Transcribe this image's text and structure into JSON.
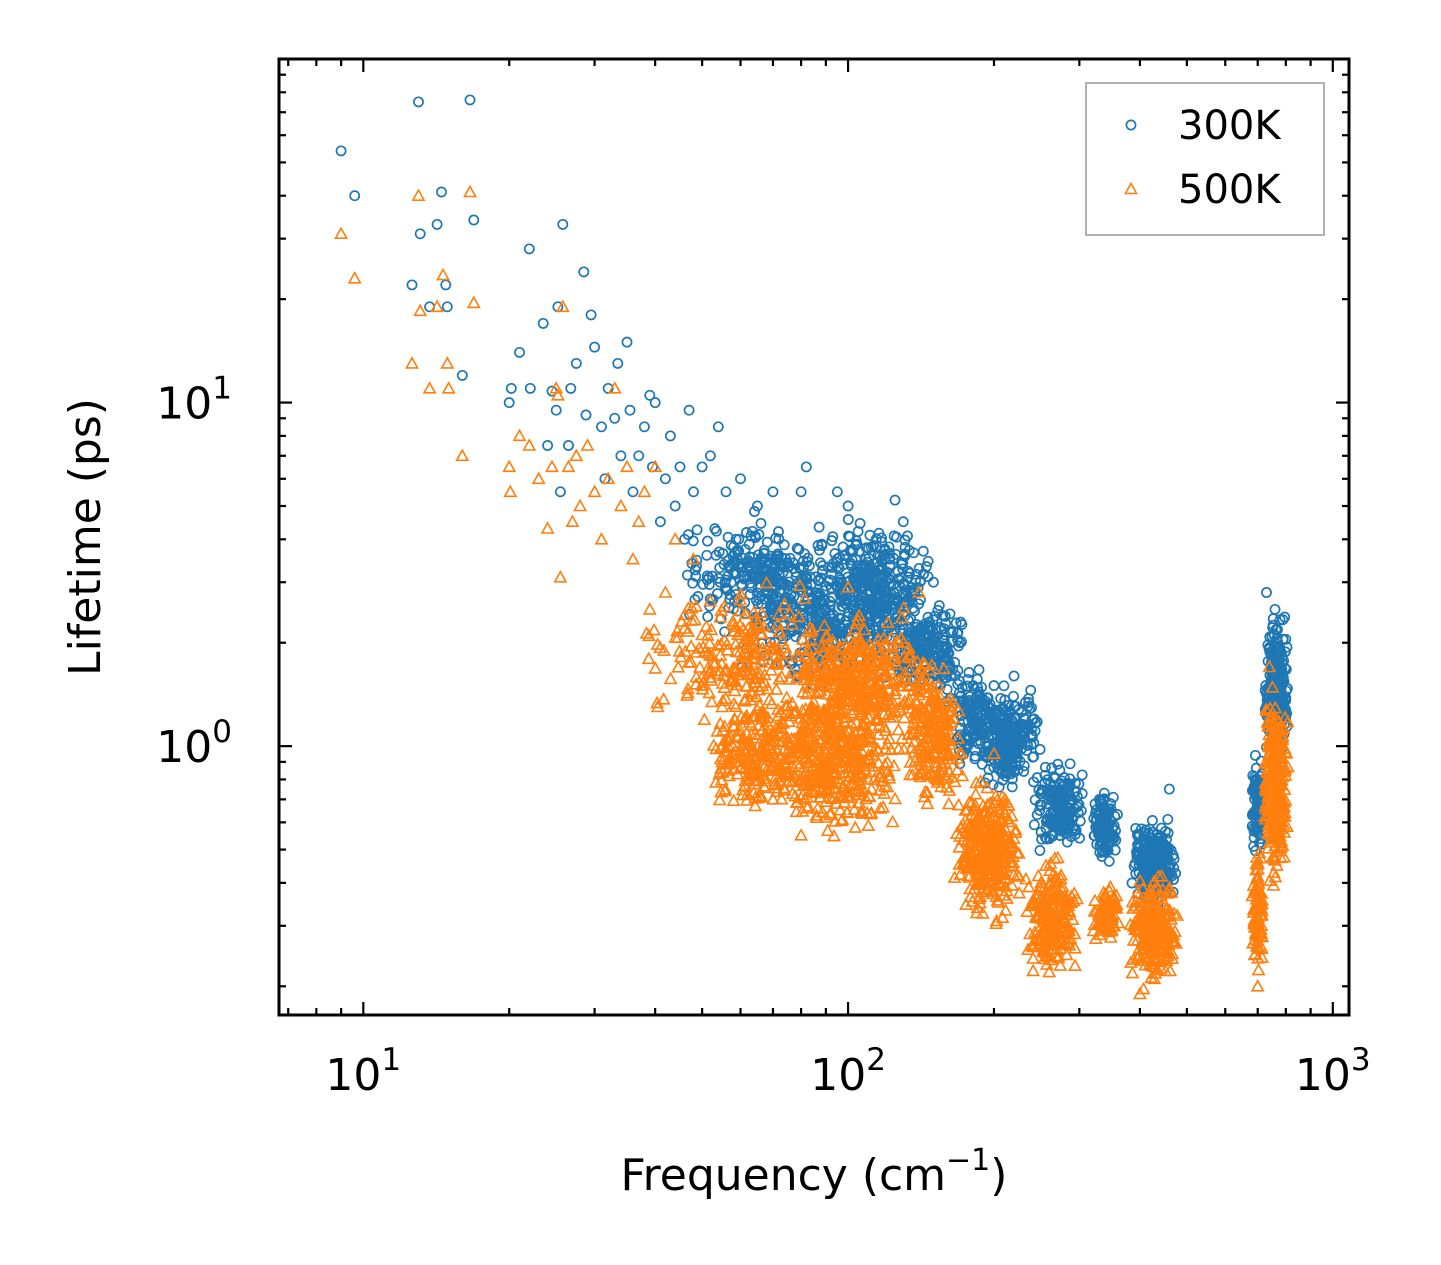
{
  "chart_data": {
    "type": "scatter",
    "xscale": "log",
    "yscale": "log",
    "xlim": [
      6.7,
      1080
    ],
    "ylim": [
      0.165,
      100
    ],
    "xlabel": "Frequency (cm",
    "xlabel_sup": "−1",
    "xlabel_end": ")",
    "ylabel": "Lifetime (ps)",
    "x_ticks": [
      {
        "value": 10,
        "base": "10",
        "exp": "1"
      },
      {
        "value": 100,
        "base": "10",
        "exp": "2"
      },
      {
        "value": 1000,
        "base": "10",
        "exp": "3"
      }
    ],
    "y_ticks": [
      {
        "value": 1,
        "base": "10",
        "exp": "0"
      },
      {
        "value": 10,
        "base": "10",
        "exp": "1"
      }
    ],
    "legend_position": "top-right",
    "series": [
      {
        "name": "300K",
        "marker": "circle",
        "color": "#1f77b4",
        "points": [
          [
            9.0,
            54
          ],
          [
            9.6,
            40
          ],
          [
            12.6,
            22
          ],
          [
            13.0,
            75
          ],
          [
            13.1,
            31
          ],
          [
            13.7,
            19
          ],
          [
            14.2,
            33
          ],
          [
            14.5,
            41
          ],
          [
            14.8,
            22
          ],
          [
            14.9,
            19
          ],
          [
            16.0,
            12
          ],
          [
            16.6,
            76
          ],
          [
            16.9,
            34
          ],
          [
            20.0,
            10
          ],
          [
            20.2,
            11
          ],
          [
            21.0,
            14
          ],
          [
            22.0,
            28
          ],
          [
            22.1,
            11
          ],
          [
            23.5,
            17
          ],
          [
            24.0,
            7.5
          ],
          [
            24.5,
            10.8
          ],
          [
            25.0,
            9.5
          ],
          [
            25.2,
            19
          ],
          [
            25.5,
            5.5
          ],
          [
            25.8,
            33
          ],
          [
            26.5,
            7.5
          ],
          [
            26.8,
            11
          ],
          [
            27.5,
            13
          ],
          [
            28.5,
            24
          ],
          [
            28.8,
            9.2
          ],
          [
            29.5,
            18
          ],
          [
            30.0,
            14.5
          ],
          [
            31.0,
            8.5
          ],
          [
            31.5,
            6
          ],
          [
            32.0,
            11
          ],
          [
            33.0,
            9
          ],
          [
            33.5,
            13
          ],
          [
            34.0,
            7
          ],
          [
            35.0,
            15
          ],
          [
            35.5,
            9.5
          ],
          [
            36.0,
            5.5
          ],
          [
            37.0,
            7
          ],
          [
            38.0,
            8.5
          ],
          [
            39.0,
            10.5
          ],
          [
            39.5,
            6.5
          ],
          [
            40.0,
            10
          ],
          [
            41.0,
            4.5
          ],
          [
            42.0,
            6
          ],
          [
            43.0,
            8
          ],
          [
            44.0,
            5
          ],
          [
            45.0,
            6.5
          ],
          [
            46.0,
            4
          ],
          [
            47.0,
            9.5
          ],
          [
            48.0,
            5.5
          ],
          [
            50.0,
            6.5
          ],
          [
            52.0,
            7
          ],
          [
            54.0,
            8.5
          ],
          [
            56.0,
            5.5
          ],
          [
            60.0,
            6
          ],
          [
            65.0,
            5
          ],
          [
            70.0,
            5.5
          ],
          [
            80.0,
            5.5
          ],
          [
            82.0,
            6.5
          ],
          [
            95.0,
            5.5
          ],
          [
            100.0,
            5
          ],
          [
            125.0,
            5.2
          ],
          [
            130.0,
            4.5
          ],
          [
            150.0,
            3
          ],
          [
            170.0,
            2
          ],
          [
            200.0,
            1.5
          ],
          [
            220.0,
            1.6
          ],
          [
            330.0,
            0.7
          ],
          [
            460.0,
            0.75
          ],
          [
            730.0,
            2.8
          ],
          [
            760.0,
            2.5
          ]
        ],
        "clusters": [
          {
            "x": [
              45,
              95
            ],
            "y": [
              2.0,
              5.0
            ],
            "n": 260
          },
          {
            "x": [
              60,
              130
            ],
            "y": [
              1.3,
              3.8
            ],
            "n": 280
          },
          {
            "x": [
              85,
              150
            ],
            "y": [
              1.8,
              4.8
            ],
            "n": 320
          },
          {
            "x": [
              120,
              175
            ],
            "y": [
              1.2,
              3.2
            ],
            "n": 200
          },
          {
            "x": [
              165,
              200
            ],
            "y": [
              0.8,
              1.8
            ],
            "n": 120
          },
          {
            "x": [
              185,
              250
            ],
            "y": [
              0.7,
              1.6
            ],
            "n": 280
          },
          {
            "x": [
              240,
              310
            ],
            "y": [
              0.45,
              0.95
            ],
            "n": 180
          },
          {
            "x": [
              320,
              360
            ],
            "y": [
              0.45,
              0.75
            ],
            "n": 120
          },
          {
            "x": [
              380,
              480
            ],
            "y": [
              0.33,
              0.65
            ],
            "n": 260
          },
          {
            "x": [
              680,
              720
            ],
            "y": [
              0.45,
              1.0
            ],
            "n": 80
          },
          {
            "x": [
              720,
              810
            ],
            "y": [
              0.8,
              2.7
            ],
            "n": 300
          }
        ]
      },
      {
        "name": "500K",
        "marker": "triangle",
        "color": "#ff7f0e",
        "points": [
          [
            9.0,
            31
          ],
          [
            9.6,
            23
          ],
          [
            12.6,
            13
          ],
          [
            13.0,
            40
          ],
          [
            13.1,
            18.5
          ],
          [
            13.7,
            11
          ],
          [
            14.2,
            19
          ],
          [
            14.6,
            23.5
          ],
          [
            14.9,
            13
          ],
          [
            15.0,
            11
          ],
          [
            16.0,
            7
          ],
          [
            16.6,
            41
          ],
          [
            16.9,
            19.5
          ],
          [
            20.0,
            6.5
          ],
          [
            20.1,
            5.5
          ],
          [
            21.0,
            8
          ],
          [
            22.0,
            7.5
          ],
          [
            23.0,
            6
          ],
          [
            24.0,
            4.3
          ],
          [
            24.5,
            6.5
          ],
          [
            25.0,
            11
          ],
          [
            25.2,
            10.5
          ],
          [
            25.5,
            3.1
          ],
          [
            25.8,
            19
          ],
          [
            26.5,
            6.5
          ],
          [
            27.0,
            4.5
          ],
          [
            27.5,
            7
          ],
          [
            28.0,
            5
          ],
          [
            29.0,
            7.5
          ],
          [
            30.0,
            5.5
          ],
          [
            31.0,
            4
          ],
          [
            32.0,
            6
          ],
          [
            33.0,
            11
          ],
          [
            34.0,
            5
          ],
          [
            35.0,
            6.5
          ],
          [
            36.0,
            3.5
          ],
          [
            37.0,
            4.5
          ],
          [
            38.0,
            5.5
          ],
          [
            39.0,
            2.5
          ],
          [
            40.0,
            6.5
          ],
          [
            42.0,
            2.8
          ],
          [
            44.0,
            4
          ],
          [
            46.0,
            2.2
          ],
          [
            48.0,
            3.5
          ],
          [
            50.0,
            1.5
          ],
          [
            55.0,
            1.3
          ],
          [
            60.0,
            0.9
          ],
          [
            70.0,
            0.7
          ],
          [
            80.0,
            0.55
          ],
          [
            90.0,
            0.62
          ],
          [
            100.0,
            2.9
          ],
          [
            140.0,
            2.8
          ],
          [
            200.0,
            0.95
          ],
          [
            260.0,
            0.22
          ],
          [
            400.0,
            0.19
          ],
          [
            740.0,
            1.7
          ],
          [
            700.0,
            0.2
          ]
        ],
        "clusters": [
          {
            "x": [
              38,
              95
            ],
            "y": [
              1.0,
              3.2
            ],
            "n": 240
          },
          {
            "x": [
              48,
              90
            ],
            "y": [
              0.6,
              1.6
            ],
            "n": 260
          },
          {
            "x": [
              70,
              130
            ],
            "y": [
              0.5,
              1.6
            ],
            "n": 360
          },
          {
            "x": [
              75,
              150
            ],
            "y": [
              0.9,
              2.6
            ],
            "n": 380
          },
          {
            "x": [
              130,
              175
            ],
            "y": [
              0.6,
              1.9
            ],
            "n": 200
          },
          {
            "x": [
              165,
              230
            ],
            "y": [
              0.28,
              0.9
            ],
            "n": 320
          },
          {
            "x": [
              230,
              300
            ],
            "y": [
              0.2,
              0.5
            ],
            "n": 220
          },
          {
            "x": [
              320,
              365
            ],
            "y": [
              0.25,
              0.42
            ],
            "n": 90
          },
          {
            "x": [
              380,
              480
            ],
            "y": [
              0.19,
              0.45
            ],
            "n": 260
          },
          {
            "x": [
              680,
              720
            ],
            "y": [
              0.2,
              0.55
            ],
            "n": 90
          },
          {
            "x": [
              720,
              810
            ],
            "y": [
              0.35,
              1.7
            ],
            "n": 300
          }
        ]
      }
    ]
  }
}
